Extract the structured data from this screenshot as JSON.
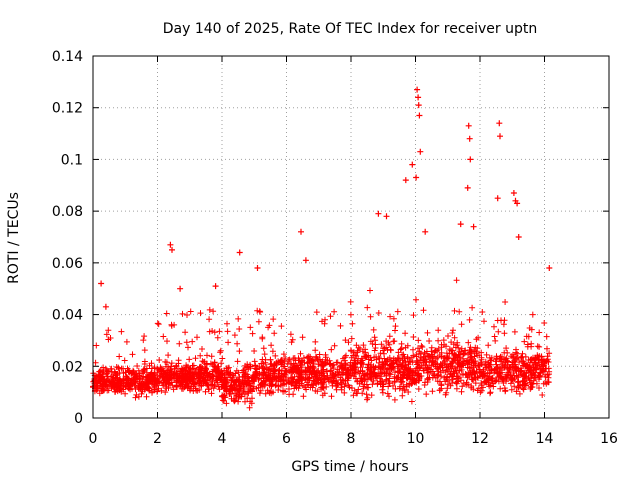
{
  "chart_data": {
    "type": "scatter",
    "title": "Day 140 of 2025, Rate Of TEC Index for receiver uptn",
    "xlabel": "GPS time / hours",
    "ylabel": "ROTI / TECUs",
    "xlim": [
      0,
      16
    ],
    "ylim": [
      0,
      0.14
    ],
    "xticks": [
      0,
      2,
      4,
      6,
      8,
      10,
      12,
      14,
      16
    ],
    "yticks": [
      0,
      0.02,
      0.04,
      0.06,
      0.08,
      0.1,
      0.12,
      0.14
    ],
    "ytick_labels": [
      "0",
      "0.02",
      "0.04",
      "0.06",
      "0.08",
      "0.1",
      "0.12",
      "0.14"
    ],
    "marker": "+",
    "grid": true,
    "colors": {
      "series": "#ff0000",
      "grid": "#a0a0a0",
      "axis": "#000000"
    },
    "series": [
      {
        "name": "ROTI",
        "notable_points": [
          {
            "x": 0.25,
            "y": 0.052
          },
          {
            "x": 0.4,
            "y": 0.043
          },
          {
            "x": 2.4,
            "y": 0.067
          },
          {
            "x": 2.45,
            "y": 0.065
          },
          {
            "x": 2.7,
            "y": 0.05
          },
          {
            "x": 3.8,
            "y": 0.051
          },
          {
            "x": 4.55,
            "y": 0.064
          },
          {
            "x": 5.1,
            "y": 0.058
          },
          {
            "x": 6.45,
            "y": 0.072
          },
          {
            "x": 6.6,
            "y": 0.061
          },
          {
            "x": 8.85,
            "y": 0.079
          },
          {
            "x": 9.1,
            "y": 0.078
          },
          {
            "x": 9.7,
            "y": 0.092
          },
          {
            "x": 9.9,
            "y": 0.098
          },
          {
            "x": 10.05,
            "y": 0.127
          },
          {
            "x": 10.08,
            "y": 0.124
          },
          {
            "x": 10.1,
            "y": 0.121
          },
          {
            "x": 10.12,
            "y": 0.117
          },
          {
            "x": 10.15,
            "y": 0.103
          },
          {
            "x": 10.02,
            "y": 0.093
          },
          {
            "x": 10.3,
            "y": 0.072
          },
          {
            "x": 11.4,
            "y": 0.075
          },
          {
            "x": 11.65,
            "y": 0.113
          },
          {
            "x": 11.68,
            "y": 0.108
          },
          {
            "x": 11.7,
            "y": 0.1
          },
          {
            "x": 11.62,
            "y": 0.089
          },
          {
            "x": 11.8,
            "y": 0.074
          },
          {
            "x": 12.6,
            "y": 0.114
          },
          {
            "x": 12.62,
            "y": 0.109
          },
          {
            "x": 12.55,
            "y": 0.085
          },
          {
            "x": 13.05,
            "y": 0.087
          },
          {
            "x": 13.1,
            "y": 0.084
          },
          {
            "x": 13.15,
            "y": 0.083
          },
          {
            "x": 13.2,
            "y": 0.07
          },
          {
            "x": 14.15,
            "y": 0.058
          }
        ]
      }
    ]
  }
}
